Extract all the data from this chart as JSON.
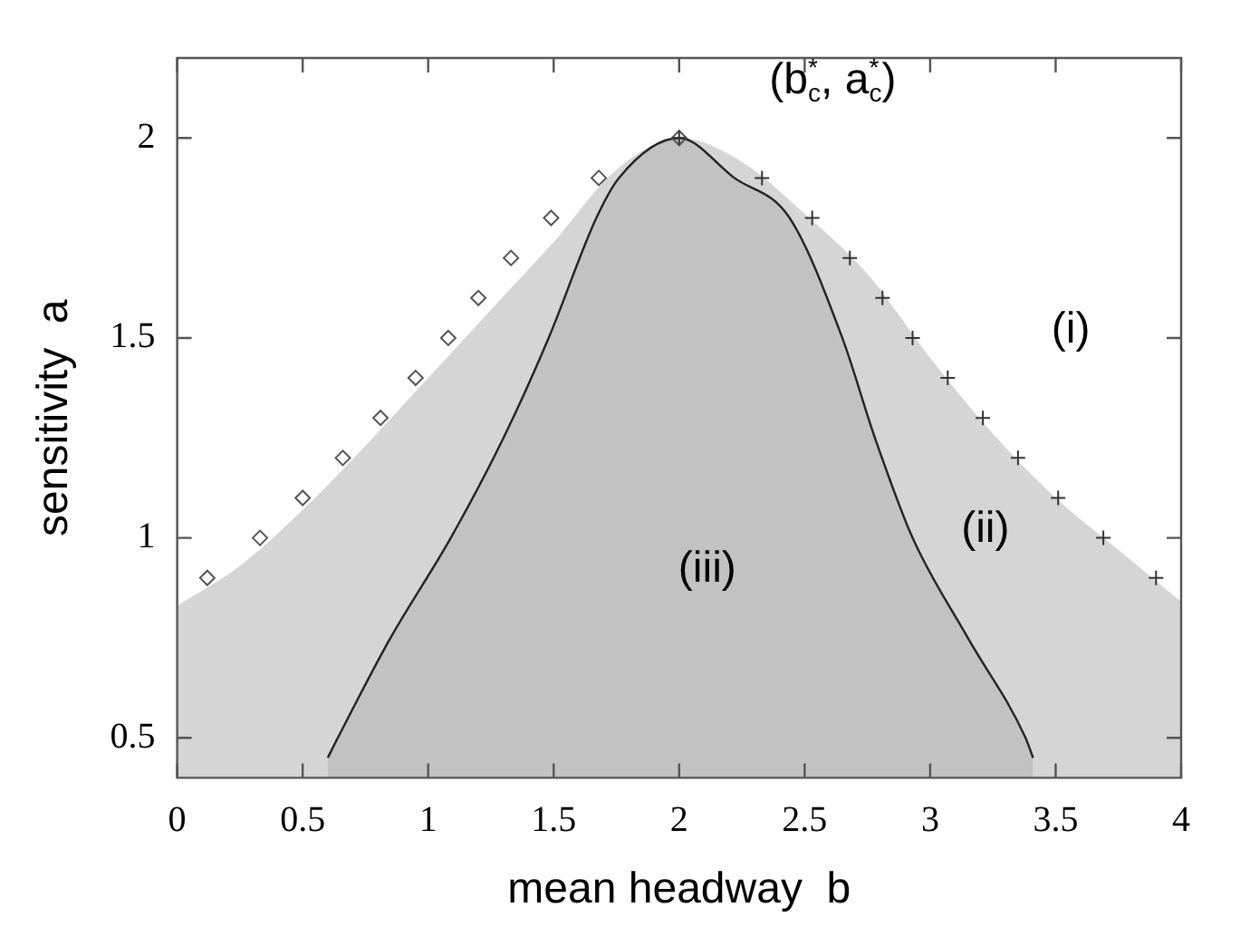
{
  "chart_data": {
    "type": "area",
    "xlabel": "mean headway  b",
    "ylabel": "sensitivity  a",
    "xlim": [
      0,
      4
    ],
    "ylim": [
      0.4,
      2.2
    ],
    "xticks": [
      0,
      0.5,
      1,
      1.5,
      2,
      2.5,
      3,
      3.5,
      4
    ],
    "yticks": [
      0.5,
      1,
      1.5,
      2
    ],
    "grid": false,
    "legend": false,
    "series": [
      {
        "color": "#d5d5d5",
        "x": [
          0,
          0.25,
          0.5,
          0.75,
          1,
          1.25,
          1.5,
          1.75,
          2,
          2.25,
          2.5,
          2.75,
          3,
          3.25,
          3.5,
          3.75,
          4
        ],
        "values": [
          0.83,
          0.93,
          1.07,
          1.23,
          1.4,
          1.57,
          1.74,
          1.92,
          2,
          1.94,
          1.81,
          1.66,
          1.45,
          1.26,
          1.1,
          0.97,
          0.84
        ]
      },
      {
        "type": "area",
        "color": "#c2c2c2",
        "x": [
          0.6,
          0.64,
          0.85,
          1.09,
          1.3,
          1.48,
          1.67,
          1.76,
          2,
          2.22,
          2.44,
          2.65,
          2.78,
          2.93,
          3.15,
          3.38,
          3.41
        ],
        "values": [
          0.45,
          0.5,
          0.75,
          1,
          1.25,
          1.5,
          1.8,
          1.9,
          2,
          1.9,
          1.8,
          1.5,
          1.25,
          1,
          0.75,
          0.5,
          0.45
        ]
      },
      {
        "type": "scatter",
        "marker": "diamond",
        "color": "#555555",
        "x": [
          0.12,
          0.33,
          0.5,
          0.66,
          0.81,
          0.95,
          1.08,
          1.2,
          1.33,
          1.49,
          1.68,
          2
        ],
        "values": [
          0.9,
          1,
          1.1,
          1.2,
          1.3,
          1.4,
          1.5,
          1.6,
          1.7,
          1.8,
          1.9,
          2
        ]
      },
      {
        "type": "scatter",
        "marker": "cross",
        "color": "#333333",
        "x": [
          2,
          2.33,
          2.53,
          2.68,
          2.81,
          2.93,
          3.07,
          3.21,
          3.35,
          3.51,
          3.69,
          3.9
        ],
        "values": [
          2,
          1.9,
          1.8,
          1.7,
          1.6,
          1.5,
          1.4,
          1.3,
          1.2,
          1.1,
          1,
          0.9
        ]
      }
    ],
    "annotations": [
      "(b$_{c}$$^{*}$, a$_{c}$$^{*}$)",
      "(i)",
      "(ii)",
      "(iii)"
    ]
  }
}
